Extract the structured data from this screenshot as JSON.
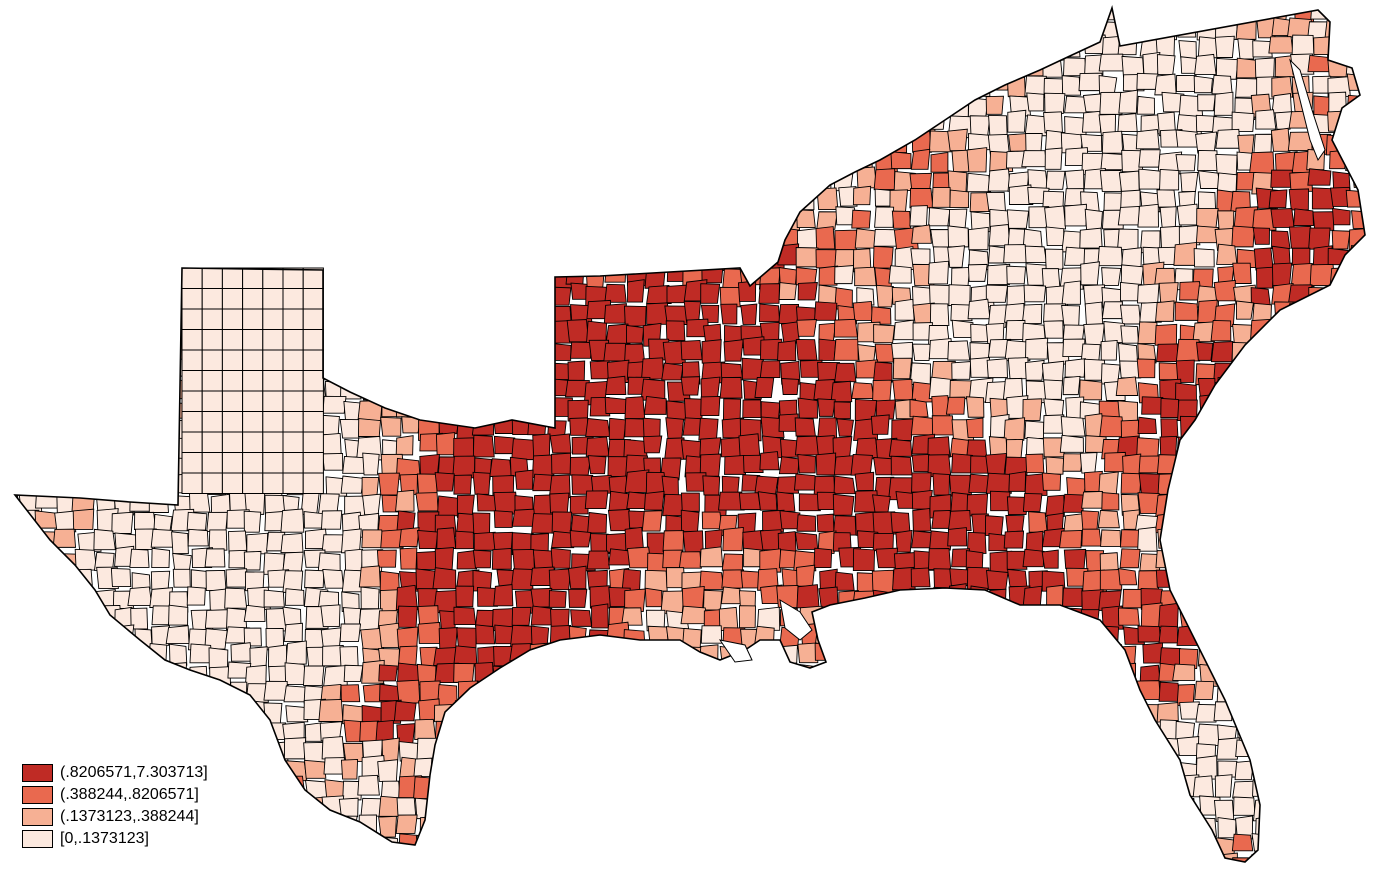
{
  "map": {
    "palette": {
      "class_4": "#bf2b25",
      "class_3": "#e9694f",
      "class_2": "#f6b094",
      "class_1": "#fce9df",
      "border": "#000000"
    }
  },
  "legend": {
    "items": [
      {
        "label": "(.8206571,7.303713]",
        "color": "#bf2b25"
      },
      {
        "label": "(.388244,.8206571]",
        "color": "#e9694f"
      },
      {
        "label": "(.1373123,.388244]",
        "color": "#f6b094"
      },
      {
        "label": "[0,.1373123]",
        "color": "#fce9df"
      }
    ]
  }
}
